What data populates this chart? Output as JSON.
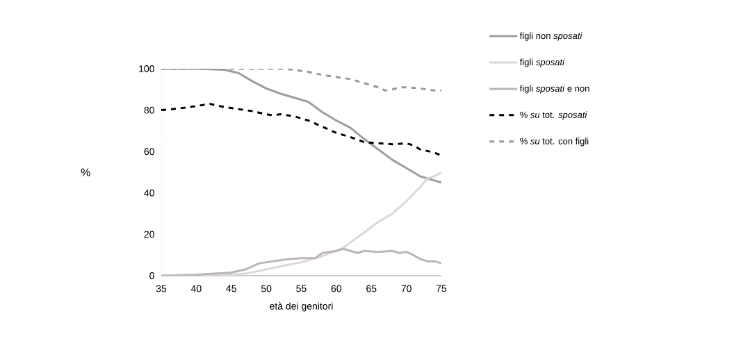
{
  "chart_data": {
    "type": "line",
    "xlabel": "età dei genitori",
    "ylabel": "%",
    "xlim": [
      35,
      75
    ],
    "xticks": [
      35,
      40,
      45,
      50,
      55,
      60,
      65,
      70,
      75
    ],
    "ylim": [
      0,
      100
    ],
    "yticks": [
      0,
      20,
      40,
      60,
      80,
      100
    ],
    "grid": false,
    "legend": "right",
    "marker": "none",
    "series": [
      {
        "name": "figli non *sposati*",
        "color": "#a09c9a",
        "line_style": "solid",
        "x": [
          35,
          40,
          44,
          46,
          48,
          50,
          52,
          54,
          56,
          58,
          60,
          62,
          64,
          66,
          68,
          70,
          72,
          74,
          75
        ],
        "values": [
          100,
          100,
          99.5,
          98,
          94,
          90.5,
          88,
          86,
          84,
          79,
          75,
          71.5,
          66,
          61,
          56,
          52,
          48,
          46,
          45
        ]
      },
      {
        "name": "figli *sposati*",
        "color": "#dcd8d6",
        "line_style": "solid",
        "x": [
          35,
          40,
          45,
          47,
          50,
          52,
          55,
          58,
          60,
          61,
          62,
          64,
          66,
          68,
          70,
          72,
          73,
          74,
          75
        ],
        "values": [
          0,
          0,
          0.5,
          1,
          3,
          4.5,
          6.5,
          9.5,
          12,
          13.5,
          16,
          21,
          26,
          30,
          36,
          43,
          47,
          48,
          50
        ]
      },
      {
        "name": "figli *sposati* e non",
        "color": "#bcb6b4",
        "line_style": "solid",
        "x": [
          35,
          40,
          45,
          47,
          49,
          51,
          53,
          55,
          57,
          58,
          60,
          61,
          62,
          63,
          64,
          66,
          68,
          69,
          70,
          71,
          72,
          73,
          74,
          75
        ],
        "values": [
          0,
          0.5,
          1.5,
          3,
          6,
          7,
          8,
          8.5,
          8.5,
          11,
          12,
          13,
          12,
          11,
          12,
          11.5,
          12,
          11,
          11.5,
          10,
          8,
          7,
          7,
          6
        ]
      },
      {
        "name": "% *su* tot. *sposati*",
        "color": "#000000",
        "line_style": "dashed",
        "x": [
          35,
          38,
          40,
          42,
          44,
          46,
          48,
          50,
          51,
          52,
          54,
          56,
          58,
          60,
          62,
          64,
          66,
          68,
          70,
          71,
          72,
          74,
          75
        ],
        "values": [
          80,
          81,
          82,
          83,
          81.5,
          80.5,
          79.5,
          78,
          77.5,
          78,
          77,
          75,
          72,
          69,
          67,
          64.5,
          64,
          63.5,
          64,
          63,
          61,
          59.5,
          58
        ]
      },
      {
        "name": "% *su* tot. con figli",
        "color": "#9c9896",
        "line_style": "dashed",
        "x": [
          35,
          40,
          45,
          50,
          52,
          54,
          56,
          58,
          60,
          62,
          64,
          66,
          67,
          68,
          69,
          70,
          72,
          74,
          75
        ],
        "values": [
          100,
          100,
          100,
          100,
          100,
          99.5,
          98.5,
          97,
          96,
          95,
          93,
          91,
          89.5,
          90,
          91,
          91,
          90.5,
          89.5,
          89.5
        ]
      }
    ]
  }
}
